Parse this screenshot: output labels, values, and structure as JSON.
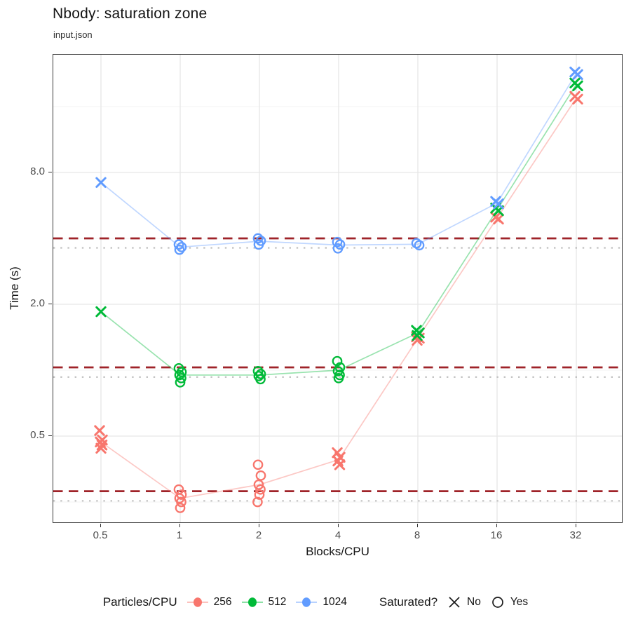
{
  "chart_data": {
    "type": "scatter",
    "title": "Nbody: saturation zone",
    "subtitle": "input.json",
    "xlabel": "Blocks/CPU",
    "ylabel": "Time (s)",
    "x_scale": "log2",
    "y_scale": "log2",
    "grid": true,
    "x_ticks": [
      0.5,
      1,
      2,
      4,
      8,
      16,
      32
    ],
    "x_tick_labels": [
      "0.5",
      "1",
      "2",
      "4",
      "8",
      "16",
      "32"
    ],
    "y_ticks": [
      8.0,
      2.0,
      0.5
    ],
    "y_tick_labels": [
      "8.0",
      "2.0",
      "0.5"
    ],
    "y_minor_ticks": [
      16,
      4,
      1,
      0.25
    ],
    "x_domain": [
      0.33,
      48
    ],
    "y_domain": [
      0.2,
      27.6
    ],
    "ref_lines": {
      "dashed": {
        "color": "#9F2329",
        "values": [
          4.0,
          1.03,
          0.28
        ]
      },
      "dotted": {
        "color": "#BDBDBD",
        "values": [
          3.62,
          0.93,
          0.253
        ]
      }
    },
    "series": [
      {
        "name": "256",
        "color": "#F8766D",
        "line_alpha": 0.4,
        "line_means": [
          0.47,
          0.26,
          0.3,
          0.39,
          1.4,
          4.95,
          17.5
        ],
        "points": [
          {
            "x": 0.5,
            "saturated": "No",
            "shape": "x",
            "times": [
              0.53,
              0.48,
              0.47,
              0.455,
              0.44
            ]
          },
          {
            "x": 1,
            "saturated": "Yes",
            "shape": "circle",
            "times": [
              0.285,
              0.27,
              0.26,
              0.25,
              0.235
            ]
          },
          {
            "x": 2,
            "saturated": "Yes",
            "shape": "circle",
            "times": [
              0.37,
              0.33,
              0.3,
              0.285,
              0.27,
              0.25
            ]
          },
          {
            "x": 4,
            "saturated": "No",
            "shape": "x",
            "times": [
              0.42,
              0.4,
              0.385,
              0.37
            ]
          },
          {
            "x": 8,
            "saturated": "No",
            "shape": "x",
            "times": [
              1.42,
              1.4,
              1.37
            ]
          },
          {
            "x": 16,
            "saturated": "No",
            "shape": "x",
            "times": [
              5.0,
              4.9
            ]
          },
          {
            "x": 32,
            "saturated": "No",
            "shape": "x",
            "times": [
              17.8,
              17.3
            ]
          }
        ]
      },
      {
        "name": "512",
        "color": "#00BA38",
        "line_alpha": 0.4,
        "line_means": [
          1.85,
          0.95,
          0.95,
          1.0,
          1.48,
          5.4,
          20.2
        ],
        "points": [
          {
            "x": 0.5,
            "saturated": "No",
            "shape": "x",
            "times": [
              1.85
            ]
          },
          {
            "x": 1,
            "saturated": "Yes",
            "shape": "circle",
            "times": [
              1.02,
              0.98,
              0.95,
              0.92,
              0.88
            ]
          },
          {
            "x": 2,
            "saturated": "Yes",
            "shape": "circle",
            "times": [
              0.99,
              0.96,
              0.94,
              0.91
            ]
          },
          {
            "x": 4,
            "saturated": "Yes",
            "shape": "circle",
            "times": [
              1.1,
              1.03,
              0.99,
              0.95,
              0.92
            ]
          },
          {
            "x": 8,
            "saturated": "No",
            "shape": "x",
            "times": [
              1.52,
              1.48,
              1.44
            ]
          },
          {
            "x": 16,
            "saturated": "No",
            "shape": "x",
            "times": [
              5.5,
              5.35
            ]
          },
          {
            "x": 32,
            "saturated": "No",
            "shape": "x",
            "times": [
              20.5,
              19.9
            ]
          }
        ]
      },
      {
        "name": "1024",
        "color": "#619CFF",
        "line_alpha": 0.4,
        "line_means": [
          7.2,
          3.65,
          3.88,
          3.73,
          3.76,
          5.8,
          22.7
        ],
        "points": [
          {
            "x": 0.5,
            "saturated": "No",
            "shape": "x",
            "times": [
              7.2
            ]
          },
          {
            "x": 1,
            "saturated": "Yes",
            "shape": "circle",
            "times": [
              3.75,
              3.65,
              3.55
            ]
          },
          {
            "x": 2,
            "saturated": "Yes",
            "shape": "circle",
            "times": [
              4.0,
              3.9,
              3.75
            ]
          },
          {
            "x": 4,
            "saturated": "Yes",
            "shape": "circle",
            "times": [
              3.85,
              3.75,
              3.6
            ]
          },
          {
            "x": 8,
            "saturated": "Yes",
            "shape": "circle",
            "times": [
              3.8,
              3.72
            ]
          },
          {
            "x": 16,
            "saturated": "No",
            "shape": "x",
            "times": [
              5.9,
              5.75
            ]
          },
          {
            "x": 32,
            "saturated": "No",
            "shape": "x",
            "times": [
              23.0,
              22.4
            ]
          }
        ]
      }
    ]
  },
  "legend": {
    "color": {
      "title": "Particles/CPU",
      "items": [
        {
          "label": "256",
          "color": "#F8766D"
        },
        {
          "label": "512",
          "color": "#00BA38"
        },
        {
          "label": "1024",
          "color": "#619CFF"
        }
      ]
    },
    "shape": {
      "title": "Saturated?",
      "items": [
        {
          "label": "No",
          "shape": "x"
        },
        {
          "label": "Yes",
          "shape": "circle"
        }
      ]
    }
  },
  "style": {
    "grid_major_color": "#e6e6e6",
    "grid_minor_color": "#f3f3f3",
    "tick_color": "#333333",
    "glyph_color": "#1a1a1a"
  }
}
